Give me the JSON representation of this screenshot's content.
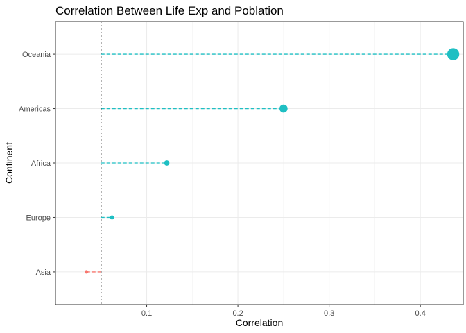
{
  "chart_data": {
    "type": "lollipop",
    "title": "Correlation Between Life Exp and Poblation",
    "xlabel": "Correlation",
    "ylabel": "Continent",
    "xlim": [
      0.0,
      0.447
    ],
    "x_ticks": [
      0.1,
      0.2,
      0.3,
      0.4
    ],
    "x_tick_labels": [
      "0.1",
      "0.2",
      "0.3",
      "0.4"
    ],
    "reference_line": 0.05,
    "reference_line_style": "dotted",
    "categories": [
      "Asia",
      "Europe",
      "Africa",
      "Americas",
      "Oceania"
    ],
    "values": [
      0.034,
      0.062,
      0.122,
      0.25,
      0.436
    ],
    "colors": {
      "positive": "#1fbfc3",
      "negative": "#f8766d"
    },
    "grid": true,
    "legend": false
  }
}
